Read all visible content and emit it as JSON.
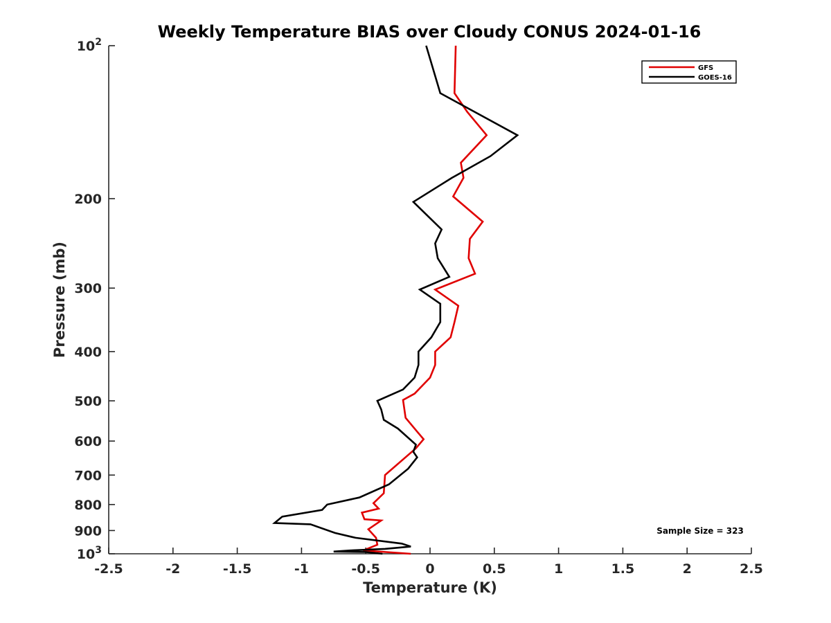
{
  "chart_data": {
    "type": "line",
    "title": "Weekly Temperature BIAS over Cloudy CONUS 2024-01-16",
    "xlabel": "Temperature (K)",
    "ylabel": "Pressure (mb)",
    "xlim": [
      -2.5,
      2.5
    ],
    "ylim": [
      1000,
      100
    ],
    "y_scale": "log",
    "x_ticks": [
      "-2.5",
      "-2",
      "-1.5",
      "-1",
      "-0.5",
      "0",
      "0.5",
      "1",
      "1.5",
      "2",
      "2.5"
    ],
    "x_tick_values": [
      -2.5,
      -2,
      -1.5,
      -1,
      -0.5,
      0,
      0.5,
      1,
      1.5,
      2,
      2.5
    ],
    "y_ticks": [
      {
        "value": 100,
        "base": "10",
        "exp": "2"
      },
      {
        "value": 200,
        "label": "200"
      },
      {
        "value": 300,
        "label": "300"
      },
      {
        "value": 400,
        "label": "400"
      },
      {
        "value": 500,
        "label": "500"
      },
      {
        "value": 600,
        "label": "600"
      },
      {
        "value": 700,
        "label": "700"
      },
      {
        "value": 800,
        "label": "800"
      },
      {
        "value": 900,
        "label": "900"
      },
      {
        "value": 1000,
        "base": "10",
        "exp": "3"
      }
    ],
    "grid": false,
    "legend_position": "top-right",
    "annotation": "Sample Size = 323",
    "series": [
      {
        "name": "GFS",
        "color": "#e00000",
        "points": [
          [
            0.2,
            100
          ],
          [
            0.19,
            124
          ],
          [
            0.29,
            135
          ],
          [
            0.44,
            150
          ],
          [
            0.24,
            170
          ],
          [
            0.26,
            182
          ],
          [
            0.18,
            198
          ],
          [
            0.41,
            222
          ],
          [
            0.31,
            240
          ],
          [
            0.3,
            262
          ],
          [
            0.35,
            281
          ],
          [
            0.04,
            302
          ],
          [
            0.22,
            325
          ],
          [
            0.19,
            350
          ],
          [
            0.16,
            375
          ],
          [
            0.04,
            400
          ],
          [
            0.04,
            425
          ],
          [
            0.0,
            450
          ],
          [
            -0.12,
            484
          ],
          [
            -0.21,
            498
          ],
          [
            -0.19,
            540
          ],
          [
            -0.1,
            575
          ],
          [
            -0.05,
            595
          ],
          [
            -0.11,
            620
          ],
          [
            -0.35,
            700
          ],
          [
            -0.36,
            760
          ],
          [
            -0.44,
            795
          ],
          [
            -0.4,
            815
          ],
          [
            -0.53,
            830
          ],
          [
            -0.51,
            855
          ],
          [
            -0.38,
            860
          ],
          [
            -0.48,
            895
          ],
          [
            -0.42,
            930
          ],
          [
            -0.41,
            960
          ],
          [
            -0.52,
            985
          ],
          [
            -0.15,
            1000
          ]
        ]
      },
      {
        "name": "GOES-16",
        "color": "#000000",
        "points": [
          [
            -0.03,
            100
          ],
          [
            0.08,
            124
          ],
          [
            0.68,
            150
          ],
          [
            0.47,
            165
          ],
          [
            0.17,
            182
          ],
          [
            -0.13,
            203
          ],
          [
            0.09,
            230
          ],
          [
            0.04,
            245
          ],
          [
            0.06,
            262
          ],
          [
            0.15,
            285
          ],
          [
            -0.08,
            302
          ],
          [
            0.08,
            322
          ],
          [
            0.08,
            350
          ],
          [
            0.01,
            375
          ],
          [
            -0.09,
            400
          ],
          [
            -0.09,
            425
          ],
          [
            -0.12,
            450
          ],
          [
            -0.21,
            475
          ],
          [
            -0.41,
            500
          ],
          [
            -0.38,
            520
          ],
          [
            -0.36,
            545
          ],
          [
            -0.25,
            567
          ],
          [
            -0.11,
            610
          ],
          [
            -0.13,
            630
          ],
          [
            -0.1,
            646
          ],
          [
            -0.17,
            680
          ],
          [
            -0.32,
            730
          ],
          [
            -0.55,
            775
          ],
          [
            -0.8,
            800
          ],
          [
            -0.84,
            820
          ],
          [
            -1.15,
            845
          ],
          [
            -1.21,
            870
          ],
          [
            -0.93,
            875
          ],
          [
            -0.74,
            910
          ],
          [
            -0.58,
            930
          ],
          [
            -0.22,
            955
          ],
          [
            -0.15,
            968
          ],
          [
            -0.35,
            978
          ],
          [
            -0.62,
            985
          ],
          [
            -0.75,
            990
          ],
          [
            -0.5,
            992
          ],
          [
            -0.37,
            1000
          ]
        ]
      }
    ]
  }
}
